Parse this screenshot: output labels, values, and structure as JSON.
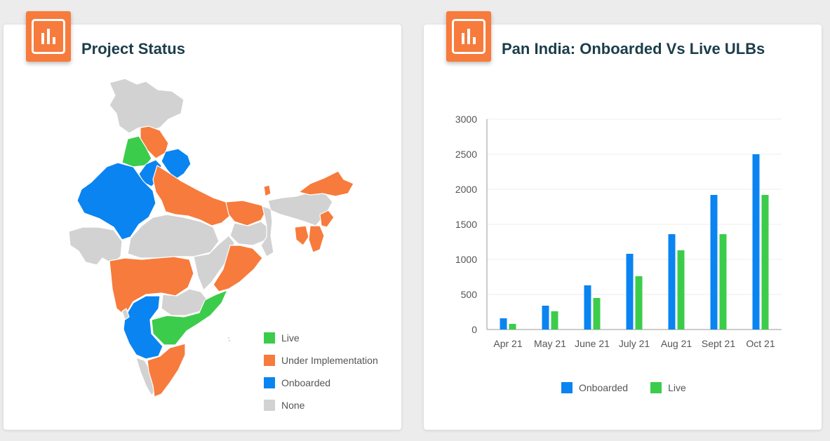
{
  "cards": {
    "project_status": {
      "title": "Project Status",
      "icon": "bar-chart-icon"
    },
    "pan_india": {
      "title": "Pan India: Onboarded Vs Live ULBs",
      "icon": "bar-chart-icon"
    }
  },
  "map_legend": [
    {
      "label": "Live",
      "color": "#3ccc4b"
    },
    {
      "label": "Under Implementation",
      "color": "#f77b3c"
    },
    {
      "label": "Onboarded",
      "color": "#0a84f1"
    },
    {
      "label": "None",
      "color": "#d2d2d2"
    }
  ],
  "colors": {
    "live": "#3ccc4b",
    "under_implementation": "#f77b3c",
    "onboarded": "#0a84f1",
    "none": "#d2d2d2",
    "accent": "#f77b3c",
    "title": "#1b3d4a"
  },
  "chart_data": {
    "type": "bar",
    "title": "Pan India: Onboarded Vs Live ULBs",
    "xlabel": "",
    "ylabel": "",
    "categories": [
      "Apr 21",
      "May 21",
      "June 21",
      "July 21",
      "Aug 21",
      "Sept 21",
      "Oct 21"
    ],
    "series": [
      {
        "name": "Onboarded",
        "color": "#0a84f1",
        "values": [
          160,
          340,
          630,
          1080,
          1360,
          1920,
          2500
        ]
      },
      {
        "name": "Live",
        "color": "#3ccc4b",
        "values": [
          80,
          260,
          450,
          760,
          1130,
          1360,
          1920
        ]
      }
    ],
    "ylim": [
      0,
      3000
    ],
    "yticks": [
      0,
      500,
      1000,
      1500,
      2000,
      2500,
      3000
    ],
    "grid": true,
    "legend_position": "bottom"
  }
}
